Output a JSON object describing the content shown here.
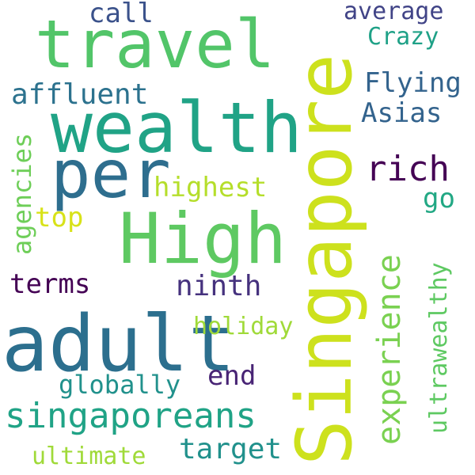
{
  "word_cloud": {
    "words": [
      {
        "text": "Singapore",
        "color": "#cde11d"
      },
      {
        "text": "adult",
        "color": "#2c6f8e"
      },
      {
        "text": "wealth",
        "color": "#20a386"
      },
      {
        "text": "High",
        "color": "#5ec962"
      },
      {
        "text": "travel",
        "color": "#52c569"
      },
      {
        "text": "per",
        "color": "#2e6e8e"
      },
      {
        "text": "singaporeans",
        "color": "#20a386"
      },
      {
        "text": "experience",
        "color": "#7ad151"
      },
      {
        "text": "rich",
        "color": "#440154"
      },
      {
        "text": "ultrawealthy",
        "color": "#5ec962"
      },
      {
        "text": "highest",
        "color": "#b5de2b"
      },
      {
        "text": "affluent",
        "color": "#2c728e"
      },
      {
        "text": "ninth",
        "color": "#46327e"
      },
      {
        "text": "terms",
        "color": "#440154"
      },
      {
        "text": "Flying",
        "color": "#33638d"
      },
      {
        "text": "Asias",
        "color": "#33638d"
      },
      {
        "text": "agencies",
        "color": "#6ece58"
      },
      {
        "text": "globally",
        "color": "#21918c"
      },
      {
        "text": "end",
        "color": "#482475"
      },
      {
        "text": "holiday",
        "color": "#a0da39"
      },
      {
        "text": "target",
        "color": "#21918c"
      },
      {
        "text": "ultimate",
        "color": "#a0da39"
      },
      {
        "text": "average",
        "color": "#414487"
      },
      {
        "text": "Crazy",
        "color": "#1fa187"
      },
      {
        "text": "call",
        "color": "#3b528b"
      },
      {
        "text": "top",
        "color": "#d8e219"
      },
      {
        "text": "go",
        "color": "#22a884"
      }
    ]
  }
}
